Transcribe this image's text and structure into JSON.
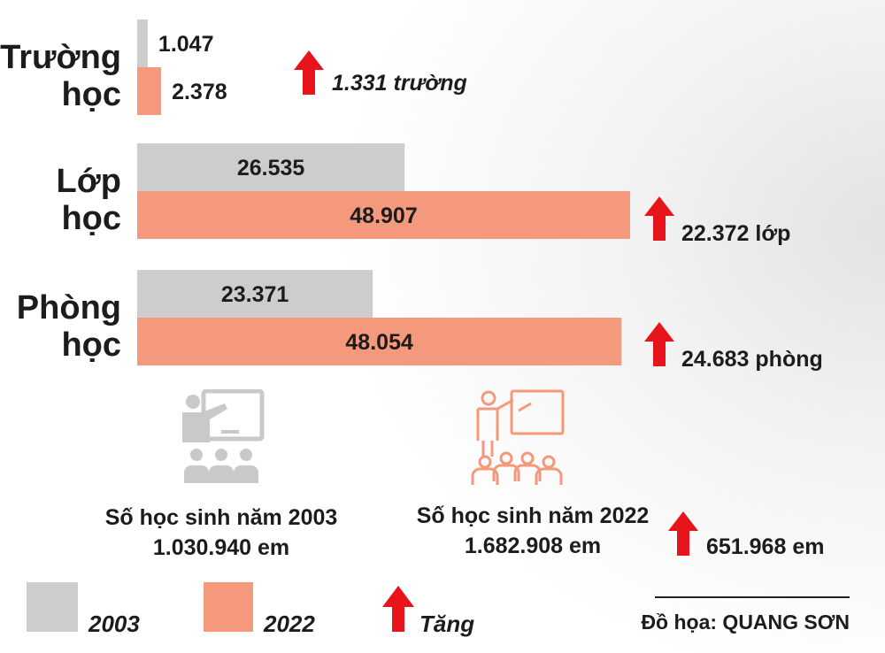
{
  "chart_data": {
    "type": "bar",
    "orientation": "horizontal",
    "categories": [
      {
        "name": "Trường học",
        "lines": [
          "Trường",
          "học"
        ],
        "values": {
          "2003": 1047,
          "2022": 2378
        },
        "labels": {
          "2003": "1.047",
          "2022": "2.378"
        },
        "increase": "1.331 trường"
      },
      {
        "name": "Lớp học",
        "lines": [
          "Lớp",
          "học"
        ],
        "values": {
          "2003": 26535,
          "2022": 48907
        },
        "labels": {
          "2003": "26.535",
          "2022": "48.907"
        },
        "increase": "22.372 lớp"
      },
      {
        "name": "Phòng học",
        "lines": [
          "Phòng",
          "học"
        ],
        "values": {
          "2003": 23371,
          "2022": 48054
        },
        "labels": {
          "2003": "23.371",
          "2022": "48.054"
        },
        "increase": "24.683 phòng"
      }
    ],
    "series": [
      {
        "name": "2003",
        "color": "#cdcdcd"
      },
      {
        "name": "2022",
        "color": "#f4997c"
      }
    ]
  },
  "students": {
    "y2003": {
      "title": "Số học sinh năm 2003",
      "value": "1.030.940 em"
    },
    "y2022": {
      "title": "Số học sinh năm 2022",
      "value": "1.682.908 em"
    },
    "increase": "651.968 em"
  },
  "legend": {
    "items": [
      {
        "label": "2003",
        "color": "#cdcdcd"
      },
      {
        "label": "2022",
        "color": "#f4997c"
      }
    ],
    "increase_label": "Tăng"
  },
  "credit": "Đồ họa: QUANG SƠN",
  "colors": {
    "arrow": "#e8141b",
    "text": "#1c1c1c",
    "icon_2003": "#c9c9c9",
    "icon_2022": "#f4997c"
  },
  "icons": [
    "teacher-classroom-icon",
    "teacher-classroom-icon"
  ]
}
